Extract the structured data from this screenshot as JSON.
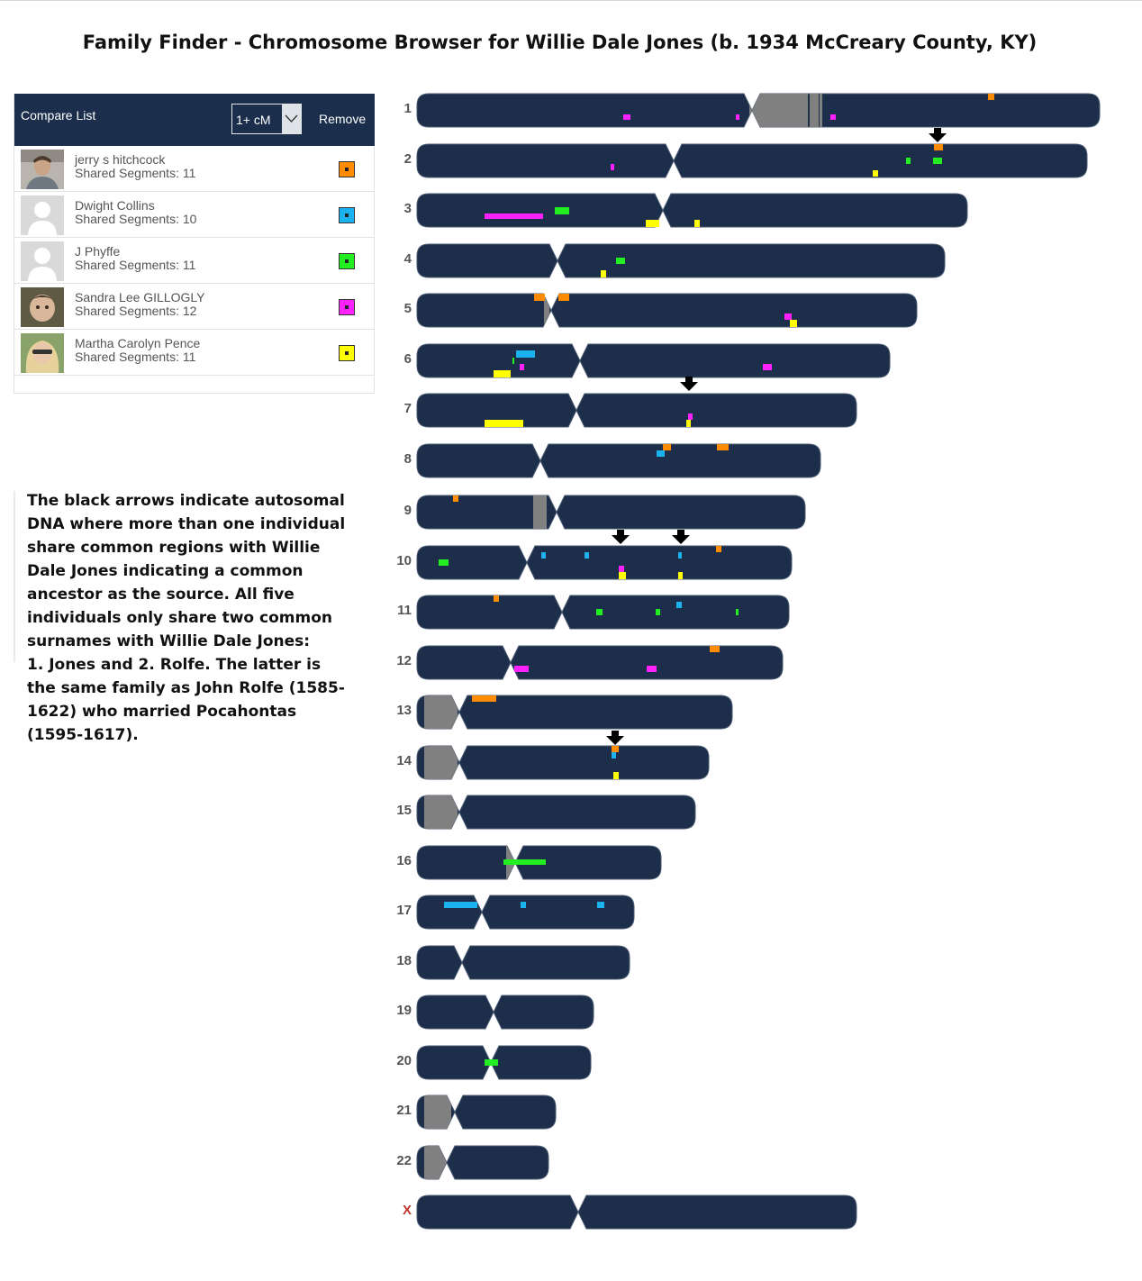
{
  "title": "Family Finder - Chromosome Browser for Willie Dale Jones (b. 1934 McCreary County, KY)",
  "compare_list": {
    "title": "Compare List",
    "threshold": "1+ cM",
    "remove_label": "Remove",
    "members": [
      {
        "name": "jerry s hitchcock",
        "segments": "Shared Segments: 11",
        "color": "#ff8c00",
        "avatar": "photo-man"
      },
      {
        "name": "Dwight Collins",
        "segments": "Shared Segments: 10",
        "color": "#1ab3f0",
        "avatar": "default-person-icon"
      },
      {
        "name": "J Phyffe",
        "segments": "Shared Segments: 11",
        "color": "#22ee22",
        "avatar": "default-person-icon"
      },
      {
        "name": "Sandra Lee GILLOGLY",
        "segments": "Shared Segments: 12",
        "color": "#ff22ff",
        "avatar": "photo-child"
      },
      {
        "name": "Martha Carolyn Pence",
        "segments": "Shared Segments: 11",
        "color": "#ffff00",
        "avatar": "photo-woman"
      }
    ]
  },
  "note": {
    "paragraph1": "The black arrows indicate autosomal DNA where more than one individual share common regions with Willie Dale Jones indicating a common ancestor as the source. All five individuals only share two common surnames with Willie Dale Jones:",
    "paragraph2": "1. Jones and 2. Rolfe.  The latter is the same family as John Rolfe (1585-1622) who married Pocahontas (1595-1617)."
  },
  "colors": {
    "chromosome": "#1c2e4a",
    "gap": "#808080",
    "header": "#1b2e4c",
    "orange": "#ff8c00",
    "blue": "#1ab3f0",
    "green": "#22ee22",
    "magenta": "#ff22ff",
    "yellow": "#ffff00",
    "arrow": "#000000"
  },
  "chromosomes": [
    {
      "label": "1"
    },
    {
      "label": "2"
    },
    {
      "label": "3"
    },
    {
      "label": "4"
    },
    {
      "label": "5"
    },
    {
      "label": "6"
    },
    {
      "label": "7"
    },
    {
      "label": "8"
    },
    {
      "label": "9"
    },
    {
      "label": "10"
    },
    {
      "label": "11"
    },
    {
      "label": "12"
    },
    {
      "label": "13"
    },
    {
      "label": "14"
    },
    {
      "label": "15"
    },
    {
      "label": "16"
    },
    {
      "label": "17"
    },
    {
      "label": "18"
    },
    {
      "label": "19"
    },
    {
      "label": "20"
    },
    {
      "label": "21"
    },
    {
      "label": "22"
    },
    {
      "label": "X"
    }
  ]
}
